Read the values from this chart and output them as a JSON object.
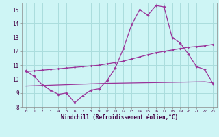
{
  "x": [
    0,
    1,
    2,
    3,
    4,
    5,
    6,
    7,
    8,
    9,
    10,
    11,
    12,
    13,
    14,
    15,
    16,
    17,
    18,
    19,
    20,
    21,
    22,
    23
  ],
  "windchill": [
    10.6,
    10.2,
    9.6,
    9.2,
    8.9,
    9.0,
    8.3,
    8.8,
    9.2,
    9.3,
    9.9,
    10.8,
    12.2,
    13.9,
    15.0,
    14.6,
    15.3,
    15.2,
    13.0,
    12.6,
    11.8,
    10.9,
    10.7,
    9.7
  ],
  "line2": [
    10.55,
    10.6,
    10.65,
    10.7,
    10.75,
    10.8,
    10.85,
    10.9,
    10.95,
    11.0,
    11.1,
    11.2,
    11.3,
    11.45,
    11.6,
    11.75,
    11.9,
    12.0,
    12.1,
    12.2,
    12.3,
    12.35,
    12.4,
    12.5
  ],
  "line3": [
    9.5,
    9.52,
    9.54,
    9.56,
    9.58,
    9.6,
    9.62,
    9.64,
    9.66,
    9.68,
    9.7,
    9.71,
    9.72,
    9.73,
    9.74,
    9.75,
    9.76,
    9.77,
    9.78,
    9.79,
    9.8,
    9.81,
    9.82,
    9.75
  ],
  "bg_color": "#cef5f5",
  "grid_color": "#aadddd",
  "line_color": "#993399",
  "xlabel": "Windchill (Refroidissement éolien,°C)",
  "ylim": [
    8,
    15.5
  ],
  "xlim": [
    -0.5,
    23.5
  ],
  "yticks": [
    8,
    9,
    10,
    11,
    12,
    13,
    14,
    15
  ],
  "xticks": [
    0,
    1,
    2,
    3,
    4,
    5,
    6,
    7,
    8,
    9,
    10,
    11,
    12,
    13,
    14,
    15,
    16,
    17,
    18,
    19,
    20,
    21,
    22,
    23
  ]
}
